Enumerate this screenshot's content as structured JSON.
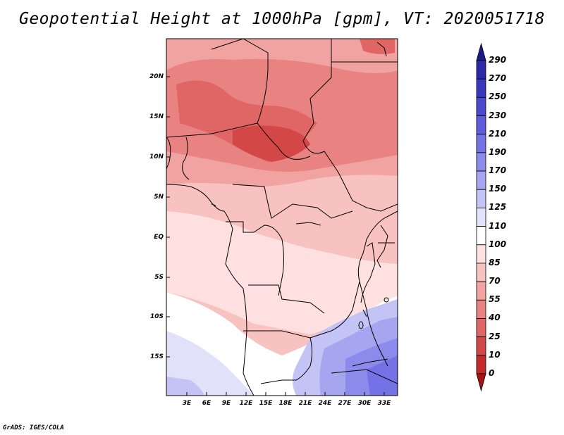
{
  "title": "Geopotential Height at 1000hPa [gpm], VT: 2020051718",
  "footer": "GrADS: IGES/COLA",
  "map": {
    "lat_labels": [
      "20N",
      "15N",
      "10N",
      "5N",
      "EQ",
      "5S",
      "10S",
      "15S"
    ],
    "lon_labels": [
      "3E",
      "6E",
      "9E",
      "12E",
      "15E",
      "18E",
      "21E",
      "24E",
      "27E",
      "30E",
      "33E"
    ]
  },
  "colorbar": {
    "labels": [
      "290",
      "270",
      "250",
      "230",
      "210",
      "190",
      "170",
      "150",
      "125",
      "110",
      "100",
      "85",
      "70",
      "55",
      "40",
      "25",
      "10",
      "0"
    ],
    "colors": [
      "#1e1a8c",
      "#2c28a8",
      "#3a37bf",
      "#4c49cf",
      "#5f5cdc",
      "#7472e4",
      "#8c8aeb",
      "#a6a5f0",
      "#c4c3f5",
      "#e1e1fa",
      "#ffffff",
      "#fde0df",
      "#f8c2c0",
      "#f0a3a1",
      "#e88382",
      "#df6665",
      "#d34847",
      "#c42a2a",
      "#a81414"
    ]
  }
}
